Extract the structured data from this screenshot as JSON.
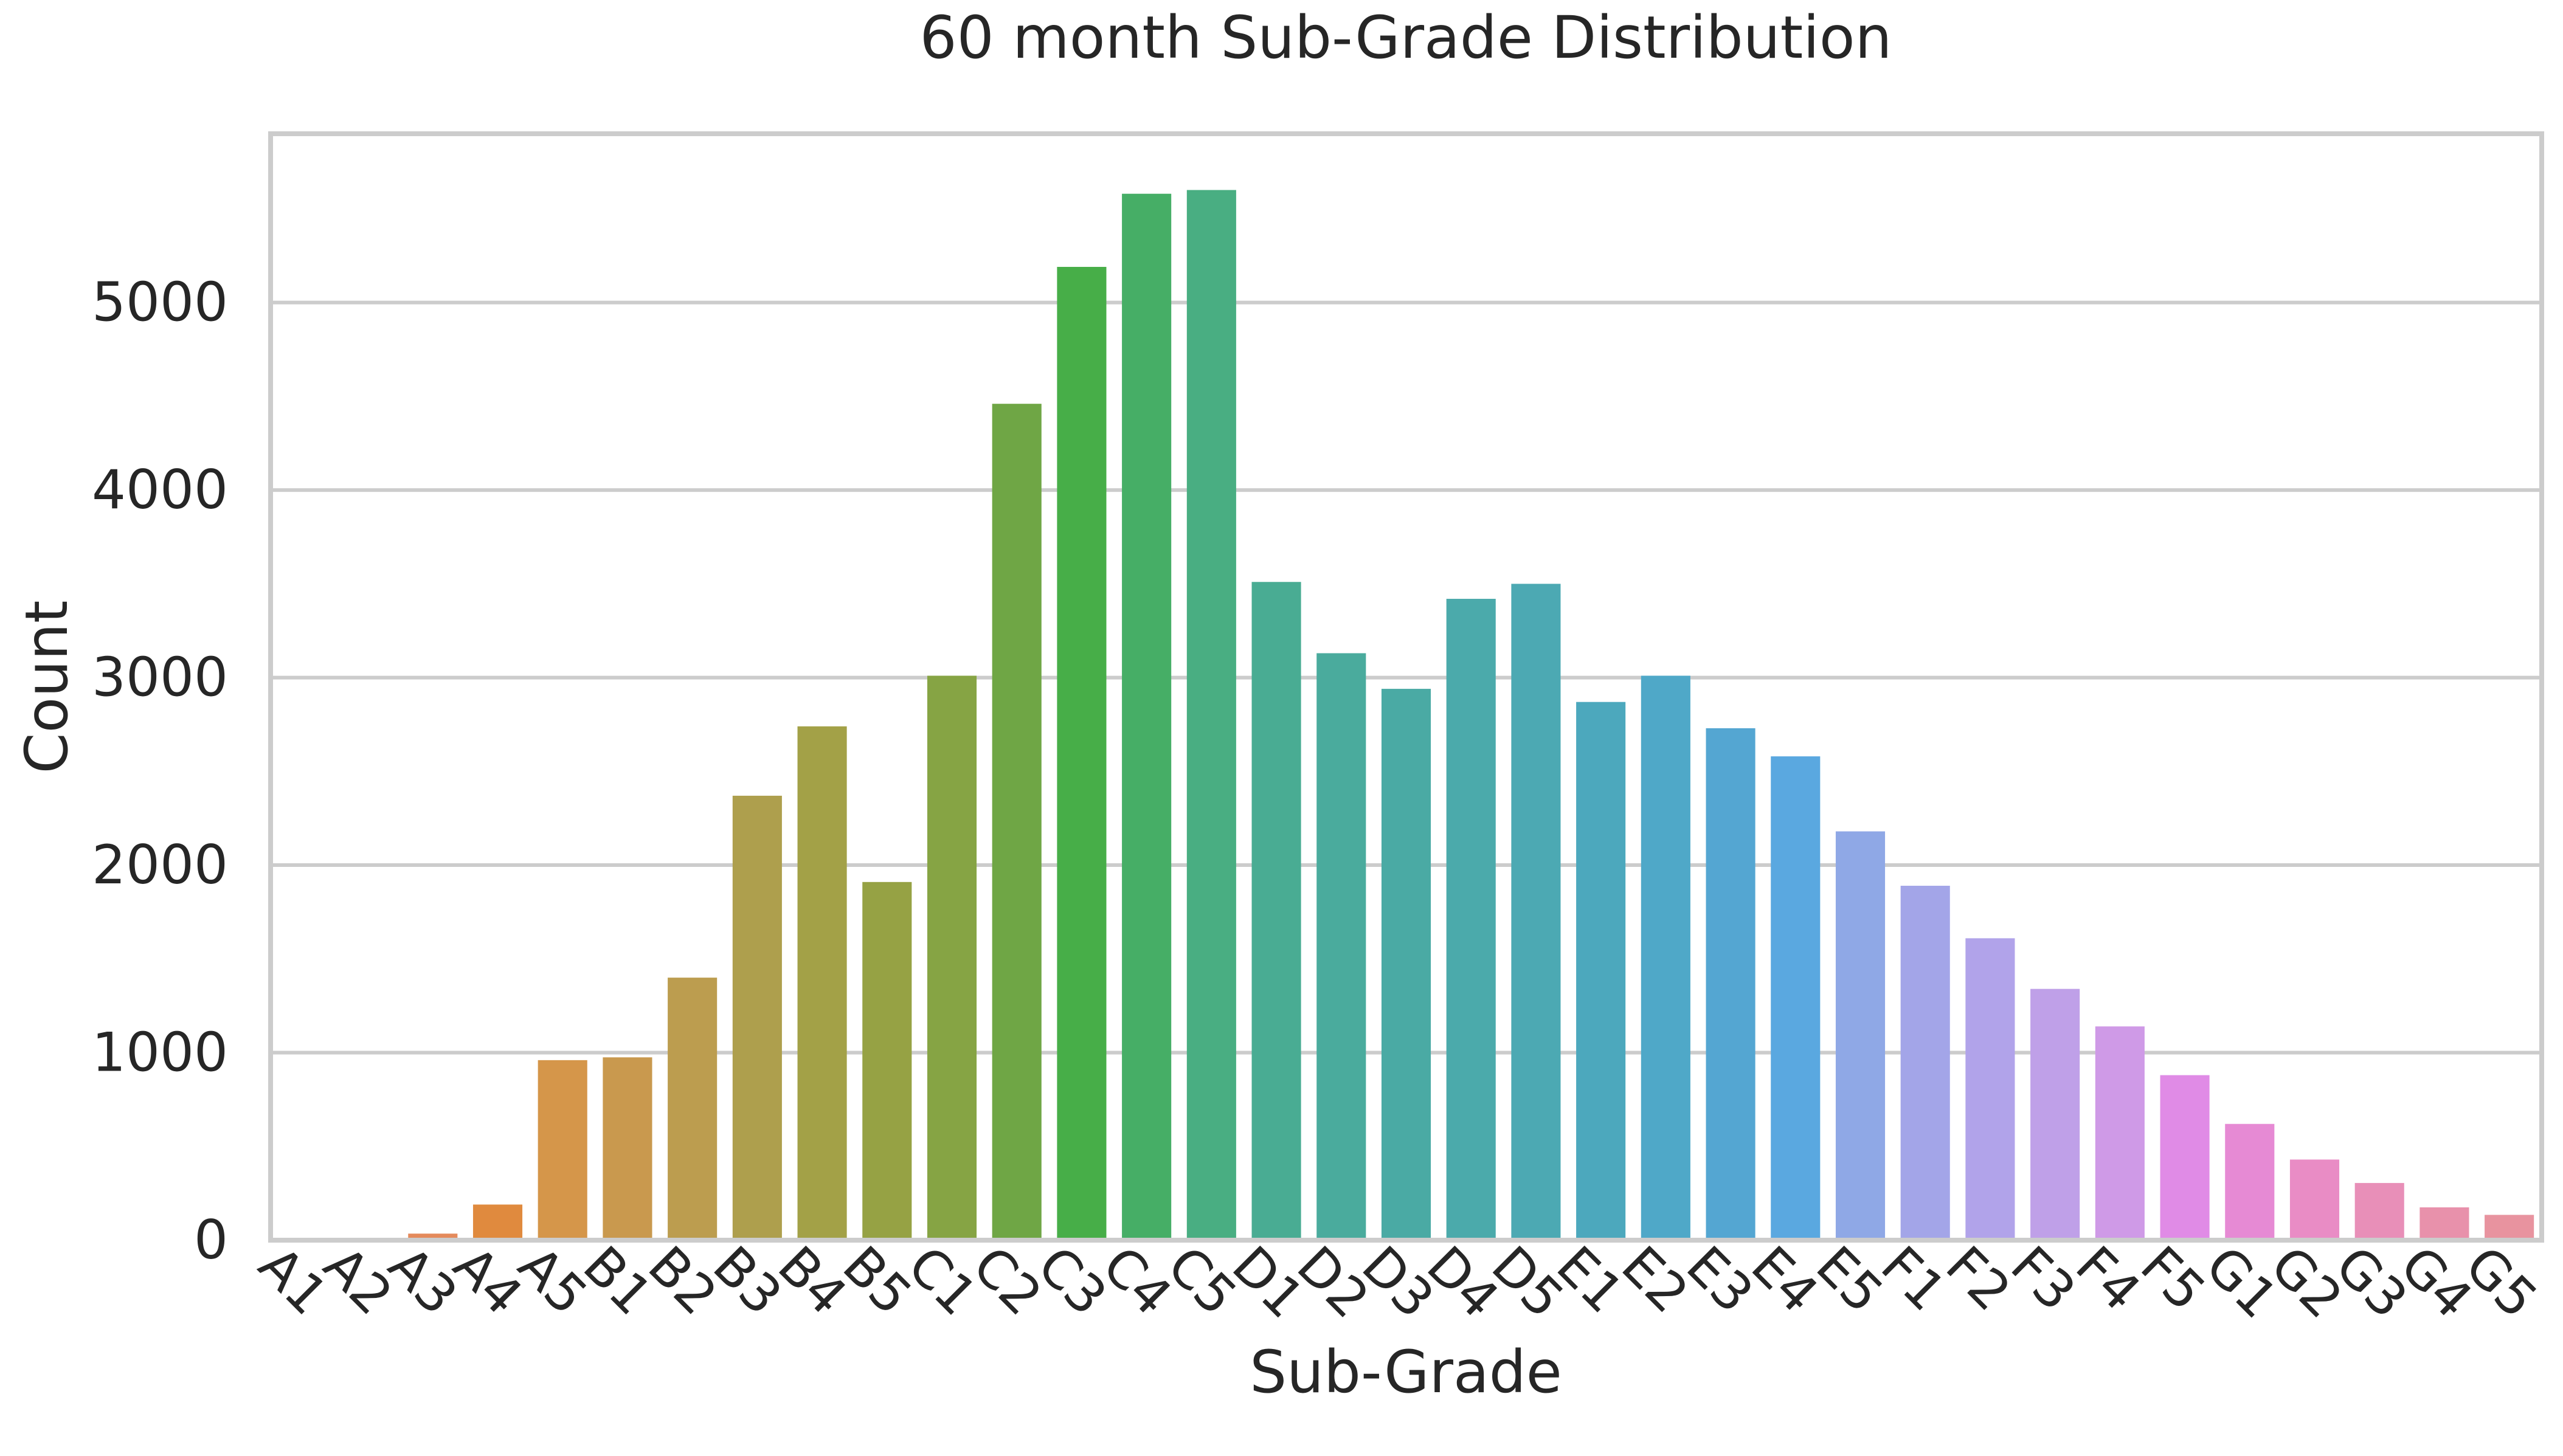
{
  "chart_data": {
    "type": "bar",
    "title": "60 month Sub-Grade Distribution",
    "xlabel": "Sub-Grade",
    "ylabel": "Count",
    "ylim": [
      0,
      5900
    ],
    "yticks": [
      0,
      1000,
      2000,
      3000,
      4000,
      5000
    ],
    "grid": true,
    "legend": "none",
    "categories": [
      "A1",
      "A2",
      "A3",
      "A4",
      "A5",
      "B1",
      "B2",
      "B3",
      "B4",
      "B5",
      "C1",
      "C2",
      "C3",
      "C4",
      "C5",
      "D1",
      "D2",
      "D3",
      "D4",
      "D5",
      "E1",
      "E2",
      "E3",
      "E4",
      "E5",
      "F1",
      "F2",
      "F3",
      "F4",
      "F5",
      "G1",
      "G2",
      "G3",
      "G4",
      "G5"
    ],
    "values": [
      2,
      5,
      35,
      190,
      960,
      975,
      1400,
      2370,
      2740,
      1910,
      3010,
      4460,
      5190,
      5580,
      5600,
      3510,
      3130,
      2940,
      3420,
      3500,
      2870,
      3010,
      2730,
      2580,
      2180,
      1890,
      1610,
      1340,
      1140,
      880,
      620,
      430,
      305,
      175,
      135
    ],
    "colors": [
      "#e8837a",
      "#e8887a",
      "#e48a5c",
      "#e08a3e",
      "#d5964a",
      "#c9994e",
      "#bc9d4f",
      "#ae9f4d",
      "#a3a147",
      "#96a244",
      "#86a444",
      "#6fa645",
      "#47ae48",
      "#46ae66",
      "#49ae82",
      "#49ac93",
      "#4aab9d",
      "#4aaaa4",
      "#4baaab",
      "#4ca9b3",
      "#4ca8bd",
      "#4fa8c8",
      "#54a6d2",
      "#5aa8e0",
      "#8fa8e6",
      "#a3a5e8",
      "#b1a3ea",
      "#bfa0e8",
      "#cf9ae7",
      "#e08be6",
      "#e68ad4",
      "#e98cc5",
      "#e88fb8",
      "#e891ab",
      "#e8939f"
    ]
  }
}
